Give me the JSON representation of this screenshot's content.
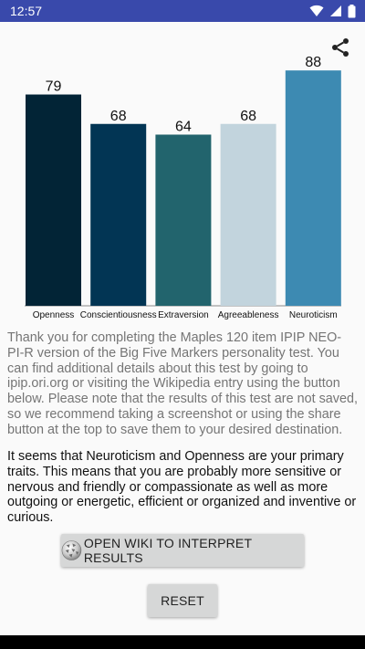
{
  "status_bar": {
    "time": "12:57",
    "icons": [
      "wifi-icon",
      "signal-icon",
      "battery-icon"
    ],
    "background": "#3949ab"
  },
  "toolbar": {
    "share_icon": "share-icon"
  },
  "chart_data": {
    "type": "bar",
    "categories": [
      "Openness",
      "Conscientiousness",
      "Extraversion",
      "Agreeableness",
      "Neuroticism"
    ],
    "values": [
      79,
      68,
      64,
      68,
      88
    ],
    "colors": [
      "#022436",
      "#023554",
      "#22646d",
      "#c2d4dd",
      "#3d8ab2"
    ],
    "ylim": [
      0,
      100
    ],
    "show_value_labels": true,
    "grid": false
  },
  "description": "Thank you for completing the Maples 120 item IPIP NEO-PI-R version of the Big Five Markers personality test. You can find additional details about this test by going to ipip.ori.org or visiting the Wikipedia entry using the button below. Please note that the results of this test are not saved, so we recommend taking a screenshot or using the share button at the top to save them to your desired destination.",
  "result": "It seems that Neuroticism and Openness are your primary traits. This means that you are probably more sensitive or nervous and friendly or compassionate as well as more outgoing or energetic, efficient or organized and inventive or curious.",
  "buttons": {
    "wiki_label": "OPEN WIKI TO INTERPRET RESULTS",
    "wiki_icon": "wikipedia-globe-icon",
    "reset_label": "RESET"
  },
  "nav_bar": {
    "background": "#000000"
  }
}
